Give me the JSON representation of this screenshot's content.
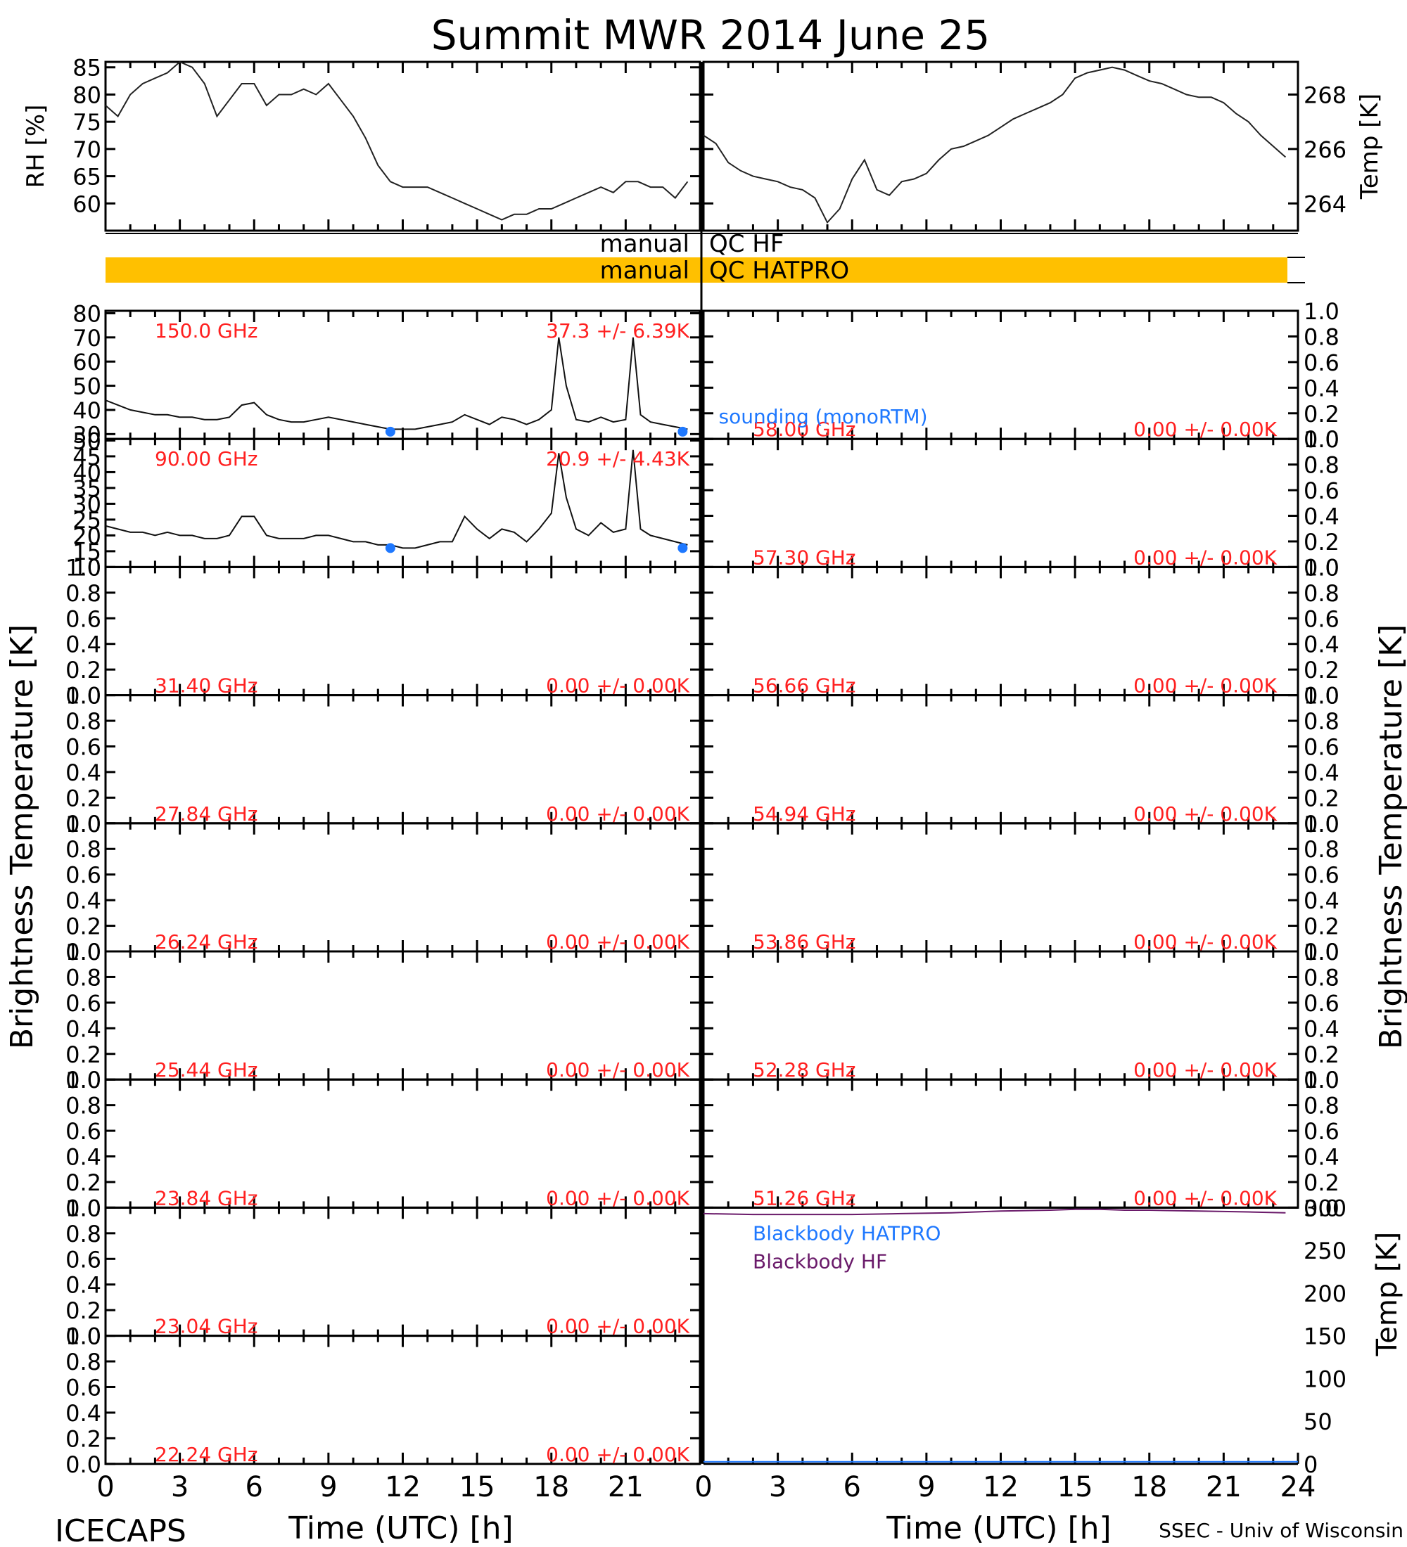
{
  "title": "Summit MWR 2014 June 25",
  "footer": {
    "left": "ICECAPS",
    "right": "SSEC - Univ of Wisconsin",
    "xlabel": "Time (UTC) [h]"
  },
  "qc": {
    "hf_label_left": "manual",
    "hf_label_right": "QC HF",
    "hatpro_label_left": "manual",
    "hatpro_label_right": "QC HATPRO",
    "hatpro_color": "#ffc000"
  },
  "sonde_label": "sounding (monoRTM)",
  "colors": {
    "text_red": "#ff2020",
    "sonde_blue": "#1e78ff",
    "bb_hatpro": "#1e78ff",
    "bb_hf": "#6a1a6a"
  },
  "chart_data": [
    {
      "id": "rh",
      "type": "line",
      "ylabel": "RH [%]",
      "xlim": [
        0,
        24
      ],
      "ylim": [
        55,
        86
      ],
      "yticks": [
        60,
        65,
        70,
        75,
        80,
        85
      ],
      "x": [
        0,
        0.5,
        1,
        1.5,
        2,
        2.5,
        3,
        3.5,
        4,
        4.5,
        5,
        5.5,
        6,
        6.5,
        7,
        7.5,
        8,
        8.5,
        9,
        9.5,
        10,
        10.5,
        11,
        11.5,
        12,
        12.5,
        13,
        13.5,
        14,
        14.5,
        15,
        15.5,
        16,
        16.5,
        17,
        17.5,
        18,
        18.5,
        19,
        19.5,
        20,
        20.5,
        21,
        21.5,
        22,
        22.5,
        23,
        23.5
      ],
      "values": [
        78,
        76,
        80,
        82,
        83,
        84,
        86,
        85,
        82,
        76,
        79,
        82,
        82,
        78,
        80,
        80,
        81,
        80,
        82,
        79,
        76,
        72,
        67,
        64,
        63,
        63,
        63,
        62,
        61,
        60,
        59,
        58,
        57,
        58,
        58,
        59,
        59,
        60,
        61,
        62,
        63,
        62,
        64,
        64,
        63,
        63,
        61,
        64
      ]
    },
    {
      "id": "temp",
      "type": "line",
      "ylabel": "Temp [K]",
      "xlim": [
        0,
        24
      ],
      "ylim": [
        263,
        269.2
      ],
      "yticks": [
        264,
        266,
        268
      ],
      "x": [
        0,
        0.5,
        1,
        1.5,
        2,
        2.5,
        3,
        3.5,
        4,
        4.5,
        5,
        5.5,
        6,
        6.5,
        7,
        7.5,
        8,
        8.5,
        9,
        9.5,
        10,
        10.5,
        11,
        11.5,
        12,
        12.5,
        13,
        13.5,
        14,
        14.5,
        15,
        15.5,
        16,
        16.5,
        17,
        17.5,
        18,
        18.5,
        19,
        19.5,
        20,
        20.5,
        21,
        21.5,
        22,
        22.5,
        23,
        23.5
      ],
      "values": [
        266.5,
        266.2,
        265.5,
        265.2,
        265,
        264.9,
        264.8,
        264.6,
        264.5,
        264.2,
        263.3,
        263.8,
        264.9,
        265.6,
        264.5,
        264.3,
        264.8,
        264.9,
        265.1,
        265.6,
        266.0,
        266.1,
        266.3,
        266.5,
        266.8,
        267.1,
        267.3,
        267.5,
        267.7,
        268.0,
        268.6,
        268.8,
        268.9,
        269.0,
        268.9,
        268.7,
        268.5,
        268.4,
        268.2,
        268.0,
        267.9,
        267.9,
        267.7,
        267.3,
        267.0,
        266.5,
        266.1,
        265.7
      ]
    },
    {
      "id": "tb150",
      "type": "line",
      "freq": "150.0 GHz",
      "stats": "37.3 +/- 6.39K",
      "ylim": [
        28,
        81
      ],
      "yticks": [
        30,
        40,
        50,
        60,
        70,
        80
      ],
      "x": [
        0,
        0.5,
        1,
        1.5,
        2,
        2.5,
        3,
        3.5,
        4,
        4.5,
        5,
        5.5,
        6,
        6.5,
        7,
        7.5,
        8,
        8.5,
        9,
        9.5,
        10,
        10.5,
        11,
        11.5,
        12,
        12.5,
        13,
        13.5,
        14,
        14.5,
        15,
        15.5,
        16,
        16.5,
        17,
        17.5,
        18,
        18.3,
        18.6,
        19,
        19.5,
        20,
        20.5,
        21,
        21.3,
        21.6,
        22,
        22.5,
        23,
        23.5
      ],
      "values": [
        44,
        42,
        40,
        39,
        38,
        38,
        37,
        37,
        36,
        36,
        37,
        42,
        43,
        38,
        36,
        35,
        35,
        36,
        37,
        36,
        35,
        34,
        33,
        32,
        32,
        32,
        33,
        34,
        35,
        38,
        36,
        34,
        37,
        36,
        34,
        36,
        40,
        70,
        50,
        36,
        35,
        37,
        35,
        36,
        70,
        38,
        35,
        34,
        33,
        32
      ],
      "sonde_x": [
        11.5,
        23.3
      ],
      "sonde_y": [
        31,
        31
      ]
    },
    {
      "id": "tb90",
      "type": "line",
      "freq": "90.00 GHz",
      "stats": "20.9 +/- 4.43K",
      "ylim": [
        10,
        50.5
      ],
      "yticks": [
        10,
        15,
        20,
        25,
        30,
        35,
        40,
        45,
        50
      ],
      "x": [
        0,
        0.5,
        1,
        1.5,
        2,
        2.5,
        3,
        3.5,
        4,
        4.5,
        5,
        5.5,
        6,
        6.5,
        7,
        7.5,
        8,
        8.5,
        9,
        9.5,
        10,
        10.5,
        11,
        11.5,
        12,
        12.5,
        13,
        13.5,
        14,
        14.5,
        15,
        15.5,
        16,
        16.5,
        17,
        17.5,
        18,
        18.3,
        18.6,
        19,
        19.5,
        20,
        20.5,
        21,
        21.3,
        21.6,
        22,
        22.5,
        23,
        23.5
      ],
      "values": [
        23,
        22,
        21,
        21,
        20,
        21,
        20,
        20,
        19,
        19,
        20,
        26,
        26,
        20,
        19,
        19,
        19,
        20,
        20,
        19,
        18,
        18,
        17,
        17,
        16,
        16,
        17,
        18,
        18,
        26,
        22,
        19,
        22,
        21,
        18,
        22,
        27,
        46,
        32,
        22,
        20,
        24,
        21,
        22,
        47,
        22,
        20,
        19,
        18,
        17
      ],
      "sonde_x": [
        11.5,
        23.3
      ],
      "sonde_y": [
        16,
        16
      ]
    },
    {
      "id": "tb3140",
      "type": "line",
      "freq": "31.40 GHz",
      "stats": "0.00 +/- 0.00K",
      "ylim": [
        0,
        1
      ],
      "yticks": [
        0.0,
        0.2,
        0.4,
        0.6,
        0.8,
        1.0
      ]
    },
    {
      "id": "tb2784",
      "type": "line",
      "freq": "27.84 GHz",
      "stats": "0.00 +/- 0.00K",
      "ylim": [
        0,
        1
      ],
      "yticks": [
        0.0,
        0.2,
        0.4,
        0.6,
        0.8,
        1.0
      ]
    },
    {
      "id": "tb2624",
      "type": "line",
      "freq": "26.24 GHz",
      "stats": "0.00 +/- 0.00K",
      "ylim": [
        0,
        1
      ],
      "yticks": [
        0.0,
        0.2,
        0.4,
        0.6,
        0.8,
        1.0
      ]
    },
    {
      "id": "tb2544",
      "type": "line",
      "freq": "25.44 GHz",
      "stats": "0.00 +/- 0.00K",
      "ylim": [
        0,
        1
      ],
      "yticks": [
        0.0,
        0.2,
        0.4,
        0.6,
        0.8,
        1.0
      ]
    },
    {
      "id": "tb2384",
      "type": "line",
      "freq": "23.84 GHz",
      "stats": "0.00 +/- 0.00K",
      "ylim": [
        0,
        1
      ],
      "yticks": [
        0.0,
        0.2,
        0.4,
        0.6,
        0.8,
        1.0
      ]
    },
    {
      "id": "tb2304",
      "type": "line",
      "freq": "23.04 GHz",
      "stats": "0.00 +/- 0.00K",
      "ylim": [
        0,
        1
      ],
      "yticks": [
        0.0,
        0.2,
        0.4,
        0.6,
        0.8,
        1.0
      ]
    },
    {
      "id": "tb2224",
      "type": "line",
      "freq": "22.24 GHz",
      "stats": "0.00 +/- 0.00K",
      "ylim": [
        0,
        1
      ],
      "yticks": [
        0.0,
        0.2,
        0.4,
        0.6,
        0.8,
        1.0
      ]
    },
    {
      "id": "tb5800",
      "type": "line",
      "freq": "58.00 GHz",
      "stats": "0.00 +/- 0.00K",
      "ylim": [
        0,
        1
      ],
      "yticks": [
        0.0,
        0.2,
        0.4,
        0.6,
        0.8,
        1.0
      ]
    },
    {
      "id": "tb5730",
      "type": "line",
      "freq": "57.30 GHz",
      "stats": "0.00 +/- 0.00K",
      "ylim": [
        0,
        1
      ],
      "yticks": [
        0.0,
        0.2,
        0.4,
        0.6,
        0.8,
        1.0
      ]
    },
    {
      "id": "tb5666",
      "type": "line",
      "freq": "56.66 GHz",
      "stats": "0.00 +/- 0.00K",
      "ylim": [
        0,
        1
      ],
      "yticks": [
        0.0,
        0.2,
        0.4,
        0.6,
        0.8,
        1.0
      ]
    },
    {
      "id": "tb5494",
      "type": "line",
      "freq": "54.94 GHz",
      "stats": "0.00 +/- 0.00K",
      "ylim": [
        0,
        1
      ],
      "yticks": [
        0.0,
        0.2,
        0.4,
        0.6,
        0.8,
        1.0
      ]
    },
    {
      "id": "tb5386",
      "type": "line",
      "freq": "53.86 GHz",
      "stats": "0.00 +/- 0.00K",
      "ylim": [
        0,
        1
      ],
      "yticks": [
        0.0,
        0.2,
        0.4,
        0.6,
        0.8,
        1.0
      ]
    },
    {
      "id": "tb5228",
      "type": "line",
      "freq": "52.28 GHz",
      "stats": "0.00 +/- 0.00K",
      "ylim": [
        0,
        1
      ],
      "yticks": [
        0.0,
        0.2,
        0.4,
        0.6,
        0.8,
        1.0
      ]
    },
    {
      "id": "tb5126",
      "type": "line",
      "freq": "51.26 GHz",
      "stats": "0.00 +/- 0.00K",
      "ylim": [
        0,
        1
      ],
      "yticks": [
        0.0,
        0.2,
        0.4,
        0.6,
        0.8,
        1.0
      ]
    },
    {
      "id": "blackbody",
      "type": "line",
      "ylabel": "Temp [K]",
      "ylim": [
        0,
        300
      ],
      "yticks": [
        0,
        50,
        100,
        150,
        200,
        250,
        300
      ],
      "series": [
        {
          "name": "Blackbody HATPRO",
          "x": [],
          "values": []
        },
        {
          "name": "Blackbody HF",
          "x": [
            0,
            2,
            4,
            6,
            8,
            10,
            12,
            14,
            15,
            16,
            17,
            18,
            20,
            22,
            23.5
          ],
          "values": [
            293,
            292,
            292,
            292,
            293,
            294,
            296,
            297,
            298,
            298,
            297,
            297,
            296,
            295,
            294
          ]
        }
      ]
    }
  ],
  "axes": {
    "bt_ylabel": "Brightness Temperature [K]",
    "x_ticks": [
      "0",
      "3",
      "6",
      "9",
      "12",
      "15",
      "18",
      "21"
    ],
    "x_ticks_right": [
      "0",
      "3",
      "6",
      "9",
      "12",
      "15",
      "18",
      "21",
      "24"
    ]
  }
}
